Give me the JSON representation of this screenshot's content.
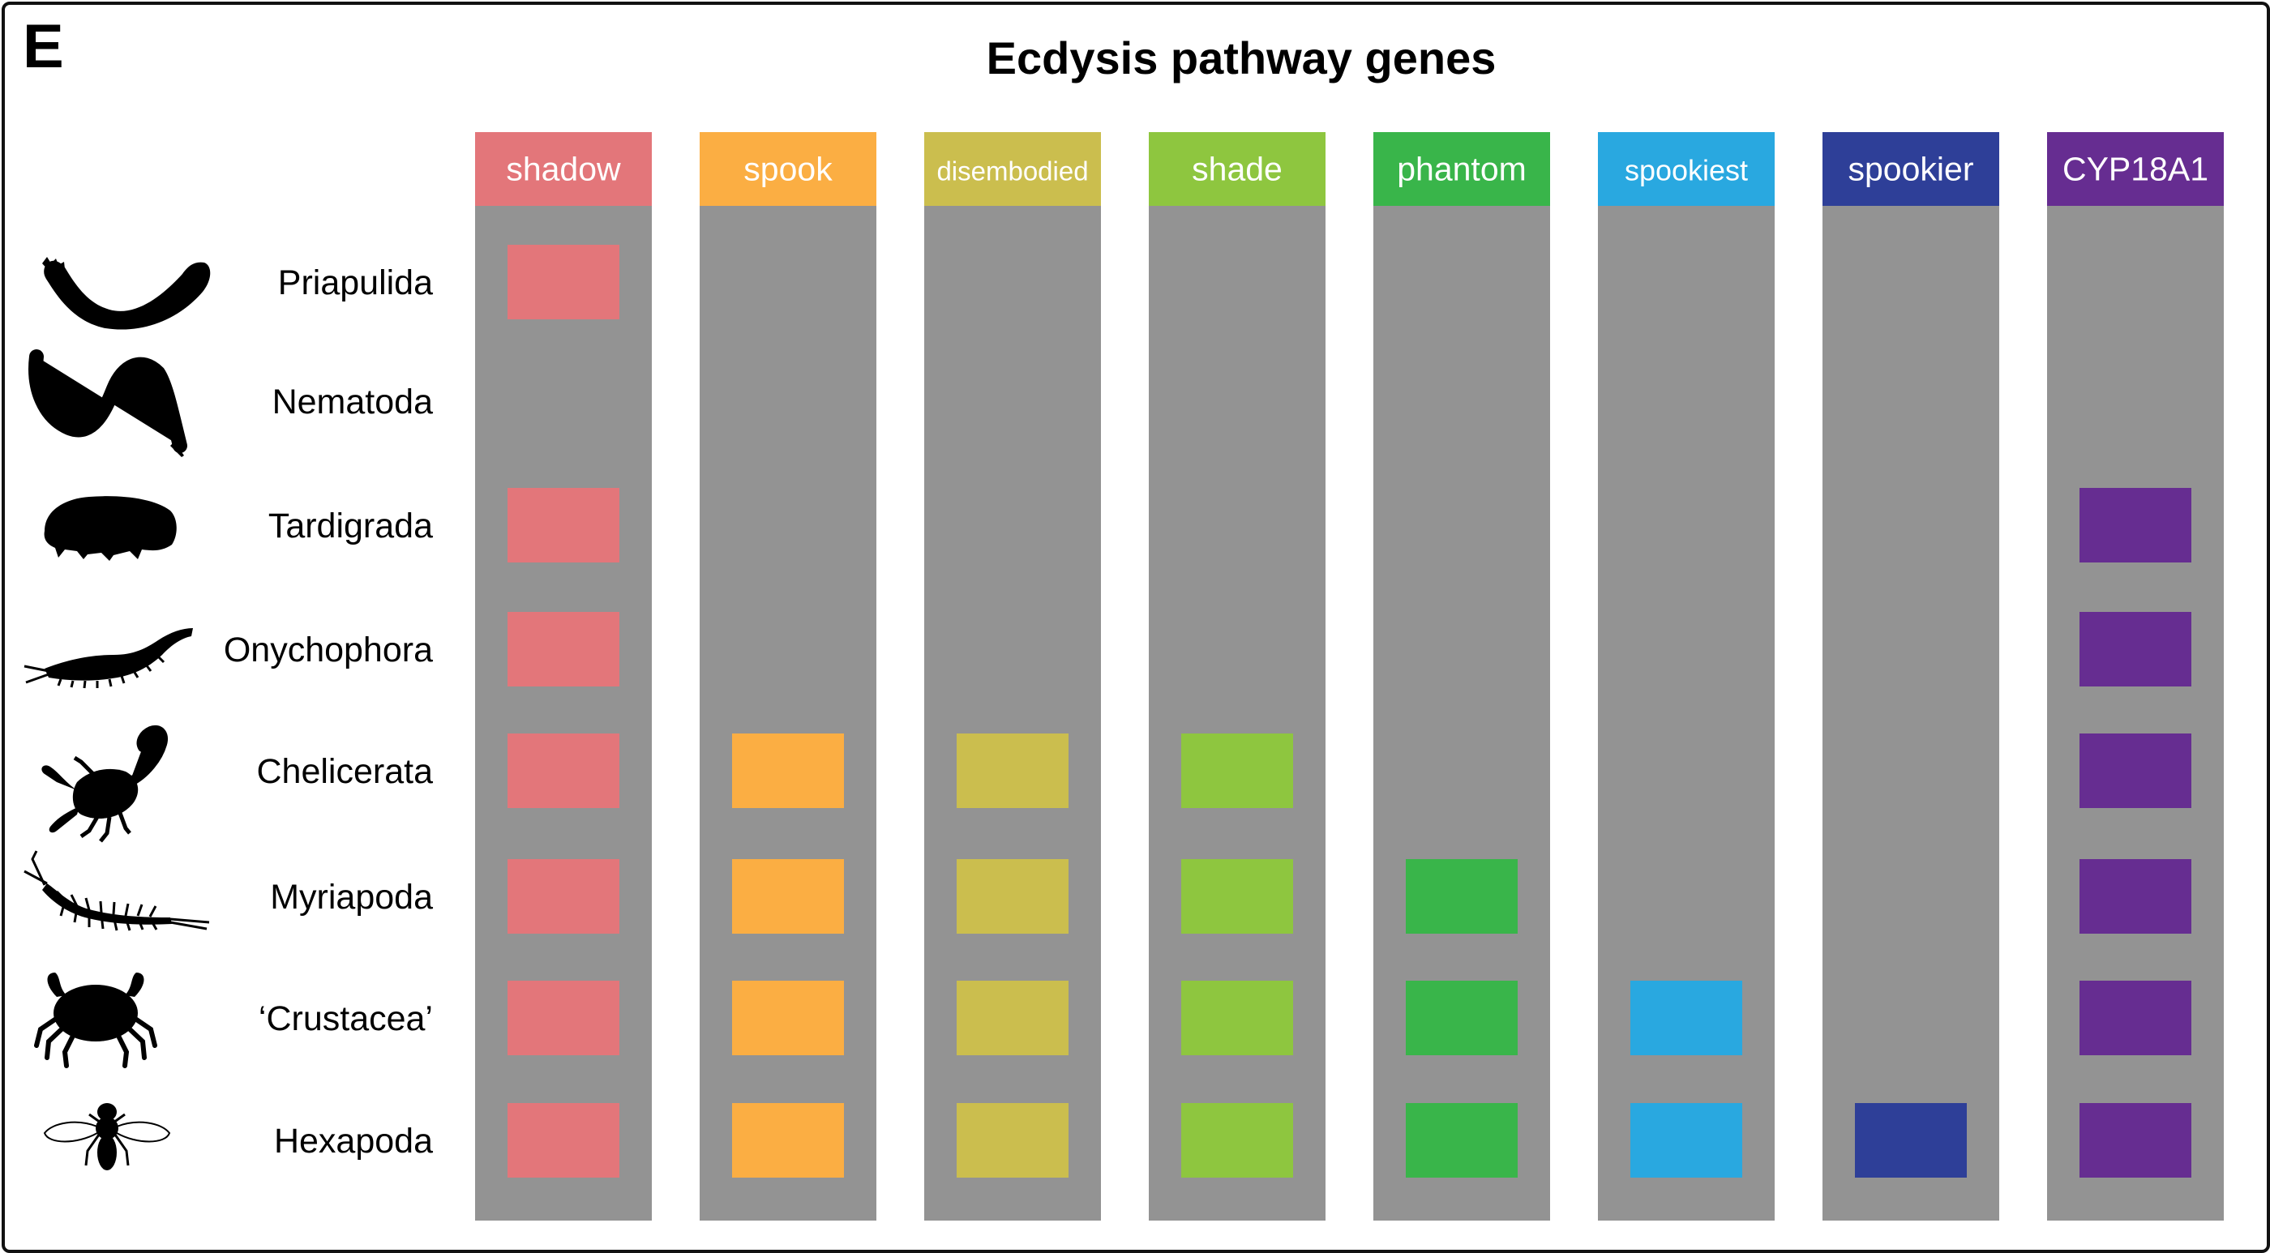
{
  "panel_letter": "E",
  "chart_data": {
    "type": "presence_matrix",
    "title": "Ecdysis pathway genes",
    "genes": [
      {
        "name": "shadow",
        "color": "#e3767a"
      },
      {
        "name": "spook",
        "color": "#fbae43"
      },
      {
        "name": "disembodied",
        "color": "#cbbe4e"
      },
      {
        "name": "shade",
        "color": "#8ec63f"
      },
      {
        "name": "phantom",
        "color": "#39b54a"
      },
      {
        "name": "spookiest",
        "color": "#29a8e0"
      },
      {
        "name": "spookier",
        "color": "#2e3f98"
      },
      {
        "name": "CYP18A1",
        "color": "#662d91"
      }
    ],
    "taxa": [
      {
        "name": "Priapulida",
        "icon": "priapulid-worm-icon",
        "present": [
          1,
          0,
          0,
          0,
          0,
          0,
          0,
          0
        ]
      },
      {
        "name": "Nematoda",
        "icon": "nematode-worm-icon",
        "present": [
          0,
          0,
          0,
          0,
          0,
          0,
          0,
          0
        ]
      },
      {
        "name": "Tardigrada",
        "icon": "tardigrade-icon",
        "present": [
          1,
          0,
          0,
          0,
          0,
          0,
          0,
          1
        ]
      },
      {
        "name": "Onychophora",
        "icon": "velvet-worm-icon",
        "present": [
          1,
          0,
          0,
          0,
          0,
          0,
          0,
          1
        ]
      },
      {
        "name": "Chelicerata",
        "icon": "scorpion-icon",
        "present": [
          1,
          1,
          1,
          1,
          0,
          0,
          0,
          1
        ]
      },
      {
        "name": "Myriapoda",
        "icon": "centipede-icon",
        "present": [
          1,
          1,
          1,
          1,
          1,
          0,
          0,
          1
        ]
      },
      {
        "name": "‘Crustacea’",
        "icon": "crab-icon",
        "present": [
          1,
          1,
          1,
          1,
          1,
          1,
          0,
          1
        ]
      },
      {
        "name": "Hexapoda",
        "icon": "fly-icon",
        "present": [
          1,
          1,
          1,
          1,
          1,
          1,
          1,
          1
        ]
      }
    ],
    "absent_color": "#939393"
  }
}
